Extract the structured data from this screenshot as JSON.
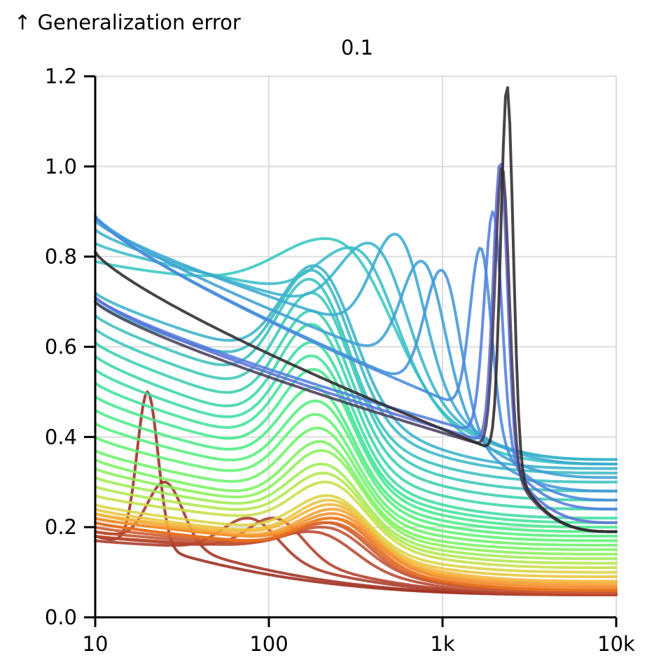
{
  "chart_data": {
    "type": "line",
    "title": "0.1",
    "ylabel": "↑ Generalization error",
    "xlabel": "",
    "xscale": "log",
    "xlim": [
      10,
      10000
    ],
    "ylim": [
      0,
      1.2
    ],
    "grid": true,
    "legend": "none",
    "x_ticks": [
      {
        "value": 10,
        "label": "10"
      },
      {
        "value": 100,
        "label": "100"
      },
      {
        "value": 1000,
        "label": "1k"
      },
      {
        "value": 10000,
        "label": "10k"
      }
    ],
    "y_ticks": [
      {
        "value": 0.0,
        "label": "0.0"
      },
      {
        "value": 0.2,
        "label": "0.2"
      },
      {
        "value": 0.4,
        "label": "0.4"
      },
      {
        "value": 0.6,
        "label": "0.6"
      },
      {
        "value": 0.8,
        "label": "0.8"
      },
      {
        "value": 1.0,
        "label": "1.0"
      },
      {
        "value": 1.2,
        "label": "1.2"
      }
    ],
    "series": [
      {
        "color": "#9c2b1e",
        "y_start": 0.18,
        "peak_x": 20,
        "peak_y": 0.5,
        "base": 0.16,
        "tail": 0.05,
        "width": 0.06
      },
      {
        "color": "#a33223",
        "y_start": 0.19,
        "peak_x": 25,
        "peak_y": 0.3,
        "base": 0.17,
        "tail": 0.05,
        "width": 0.1
      },
      {
        "color": "#aa3a28",
        "y_start": 0.17,
        "peak_x": 75,
        "peak_y": 0.22,
        "base": 0.15,
        "tail": 0.05,
        "width": 0.15
      },
      {
        "color": "#b0402b",
        "y_start": 0.18,
        "peak_x": 105,
        "peak_y": 0.22,
        "base": 0.15,
        "tail": 0.05,
        "width": 0.15
      },
      {
        "color": "#b8482f",
        "y_start": 0.18,
        "peak_x": 170,
        "peak_y": 0.19,
        "base": 0.15,
        "tail": 0.05,
        "width": 0.2
      },
      {
        "color": "#c05232",
        "y_start": 0.19,
        "peak_x": 200,
        "peak_y": 0.2,
        "base": 0.15,
        "tail": 0.055,
        "width": 0.2
      },
      {
        "color": "#cc5a30",
        "y_start": 0.2,
        "peak_x": 210,
        "peak_y": 0.21,
        "base": 0.15,
        "tail": 0.055,
        "width": 0.2
      },
      {
        "color": "#db6628",
        "y_start": 0.21,
        "peak_x": 220,
        "peak_y": 0.21,
        "base": 0.15,
        "tail": 0.06,
        "width": 0.2
      },
      {
        "color": "#e8721f",
        "y_start": 0.21,
        "peak_x": 225,
        "peak_y": 0.22,
        "base": 0.15,
        "tail": 0.06,
        "width": 0.2
      },
      {
        "color": "#f08227",
        "y_start": 0.22,
        "peak_x": 230,
        "peak_y": 0.22,
        "base": 0.16,
        "tail": 0.065,
        "width": 0.2
      },
      {
        "color": "#f4922c",
        "y_start": 0.22,
        "peak_x": 230,
        "peak_y": 0.23,
        "base": 0.16,
        "tail": 0.07,
        "width": 0.2
      },
      {
        "color": "#f6a233",
        "y_start": 0.23,
        "peak_x": 230,
        "peak_y": 0.24,
        "base": 0.16,
        "tail": 0.075,
        "width": 0.2
      },
      {
        "color": "#f3b53a",
        "y_start": 0.23,
        "peak_x": 225,
        "peak_y": 0.25,
        "base": 0.17,
        "tail": 0.08,
        "width": 0.2
      },
      {
        "color": "#eac540",
        "y_start": 0.24,
        "peak_x": 220,
        "peak_y": 0.26,
        "base": 0.17,
        "tail": 0.09,
        "width": 0.2
      },
      {
        "color": "#dcd445",
        "y_start": 0.25,
        "peak_x": 215,
        "peak_y": 0.27,
        "base": 0.18,
        "tail": 0.1,
        "width": 0.2
      },
      {
        "color": "#c8df4a",
        "y_start": 0.27,
        "peak_x": 210,
        "peak_y": 0.3,
        "base": 0.2,
        "tail": 0.11,
        "width": 0.2
      },
      {
        "color": "#b4e750",
        "y_start": 0.29,
        "peak_x": 205,
        "peak_y": 0.32,
        "base": 0.21,
        "tail": 0.12,
        "width": 0.2
      },
      {
        "color": "#a0ed56",
        "y_start": 0.31,
        "peak_x": 200,
        "peak_y": 0.34,
        "base": 0.22,
        "tail": 0.13,
        "width": 0.2
      },
      {
        "color": "#8cf05c",
        "y_start": 0.33,
        "peak_x": 200,
        "peak_y": 0.37,
        "base": 0.23,
        "tail": 0.14,
        "width": 0.2
      },
      {
        "color": "#7cf263",
        "y_start": 0.35,
        "peak_x": 195,
        "peak_y": 0.39,
        "base": 0.24,
        "tail": 0.15,
        "width": 0.2
      },
      {
        "color": "#6ef36b",
        "y_start": 0.37,
        "peak_x": 190,
        "peak_y": 0.42,
        "base": 0.26,
        "tail": 0.16,
        "width": 0.2
      },
      {
        "color": "#62f274",
        "y_start": 0.4,
        "peak_x": 185,
        "peak_y": 0.45,
        "base": 0.28,
        "tail": 0.17,
        "width": 0.2
      },
      {
        "color": "#58ef7e",
        "y_start": 0.43,
        "peak_x": 185,
        "peak_y": 0.48,
        "base": 0.3,
        "tail": 0.18,
        "width": 0.2
      },
      {
        "color": "#4fec88",
        "y_start": 0.46,
        "peak_x": 180,
        "peak_y": 0.51,
        "base": 0.32,
        "tail": 0.19,
        "width": 0.2
      },
      {
        "color": "#48e892",
        "y_start": 0.49,
        "peak_x": 180,
        "peak_y": 0.55,
        "base": 0.34,
        "tail": 0.2,
        "width": 0.2
      },
      {
        "color": "#43e39b",
        "y_start": 0.52,
        "peak_x": 175,
        "peak_y": 0.58,
        "base": 0.36,
        "tail": 0.21,
        "width": 0.2
      },
      {
        "color": "#3fdda3",
        "y_start": 0.55,
        "peak_x": 175,
        "peak_y": 0.61,
        "base": 0.38,
        "tail": 0.22,
        "width": 0.2
      },
      {
        "color": "#3dd6aa",
        "y_start": 0.58,
        "peak_x": 175,
        "peak_y": 0.65,
        "base": 0.4,
        "tail": 0.24,
        "width": 0.2
      },
      {
        "color": "#3ccfb1",
        "y_start": 0.61,
        "peak_x": 175,
        "peak_y": 0.68,
        "base": 0.43,
        "tail": 0.26,
        "width": 0.2
      },
      {
        "color": "#3cc8b8",
        "y_start": 0.64,
        "peak_x": 175,
        "peak_y": 0.72,
        "base": 0.46,
        "tail": 0.28,
        "width": 0.2
      },
      {
        "color": "#3cc1be",
        "y_start": 0.67,
        "peak_x": 170,
        "peak_y": 0.75,
        "base": 0.49,
        "tail": 0.3,
        "width": 0.2
      },
      {
        "color": "#3cbac4",
        "y_start": 0.7,
        "peak_x": 175,
        "peak_y": 0.77,
        "base": 0.52,
        "tail": 0.32,
        "width": 0.2
      },
      {
        "color": "#3bb3c9",
        "y_start": 0.72,
        "peak_x": 180,
        "peak_y": 0.78,
        "base": 0.55,
        "tail": 0.33,
        "width": 0.2
      },
      {
        "color": "#3ac8c0",
        "y_start": 0.79,
        "peak_x": 210,
        "peak_y": 0.84,
        "base": 0.72,
        "tail": 0.34,
        "width": 0.3
      },
      {
        "color": "#3bbdc6",
        "y_start": 0.83,
        "peak_x": 290,
        "peak_y": 0.82,
        "base": 0.7,
        "tail": 0.35,
        "width": 0.2
      },
      {
        "color": "#3bb4cc",
        "y_start": 0.86,
        "peak_x": 370,
        "peak_y": 0.83,
        "base": 0.66,
        "tail": 0.35,
        "width": 0.18
      },
      {
        "color": "#3caad2",
        "y_start": 0.88,
        "peak_x": 530,
        "peak_y": 0.85,
        "base": 0.62,
        "tail": 0.34,
        "width": 0.14
      },
      {
        "color": "#3fa0d6",
        "y_start": 0.89,
        "peak_x": 750,
        "peak_y": 0.79,
        "base": 0.55,
        "tail": 0.31,
        "width": 0.12
      },
      {
        "color": "#4496da",
        "y_start": 0.89,
        "peak_x": 980,
        "peak_y": 0.77,
        "base": 0.49,
        "tail": 0.28,
        "width": 0.1
      },
      {
        "color": "#4a8bdc",
        "y_start": 0.89,
        "peak_x": 1650,
        "peak_y": 0.82,
        "base": 0.45,
        "tail": 0.26,
        "width": 0.06
      },
      {
        "color": "#537fdd",
        "y_start": 0.71,
        "peak_x": 1950,
        "peak_y": 0.9,
        "base": 0.4,
        "tail": 0.24,
        "width": 0.05
      },
      {
        "color": "#5f70d8",
        "y_start": 0.71,
        "peak_x": 2150,
        "peak_y": 1.01,
        "base": 0.38,
        "tail": 0.21,
        "width": 0.04
      },
      {
        "color": "#4a3f5e",
        "y_start": 0.7,
        "peak_x": 2200,
        "peak_y": 1.0,
        "base": 0.37,
        "tail": 0.19,
        "width": 0.04
      },
      {
        "color": "#2f2a2c",
        "y_start": 0.81,
        "peak_x": 2350,
        "peak_y": 1.18,
        "base": 0.36,
        "tail": 0.19,
        "width": 0.035
      }
    ]
  }
}
